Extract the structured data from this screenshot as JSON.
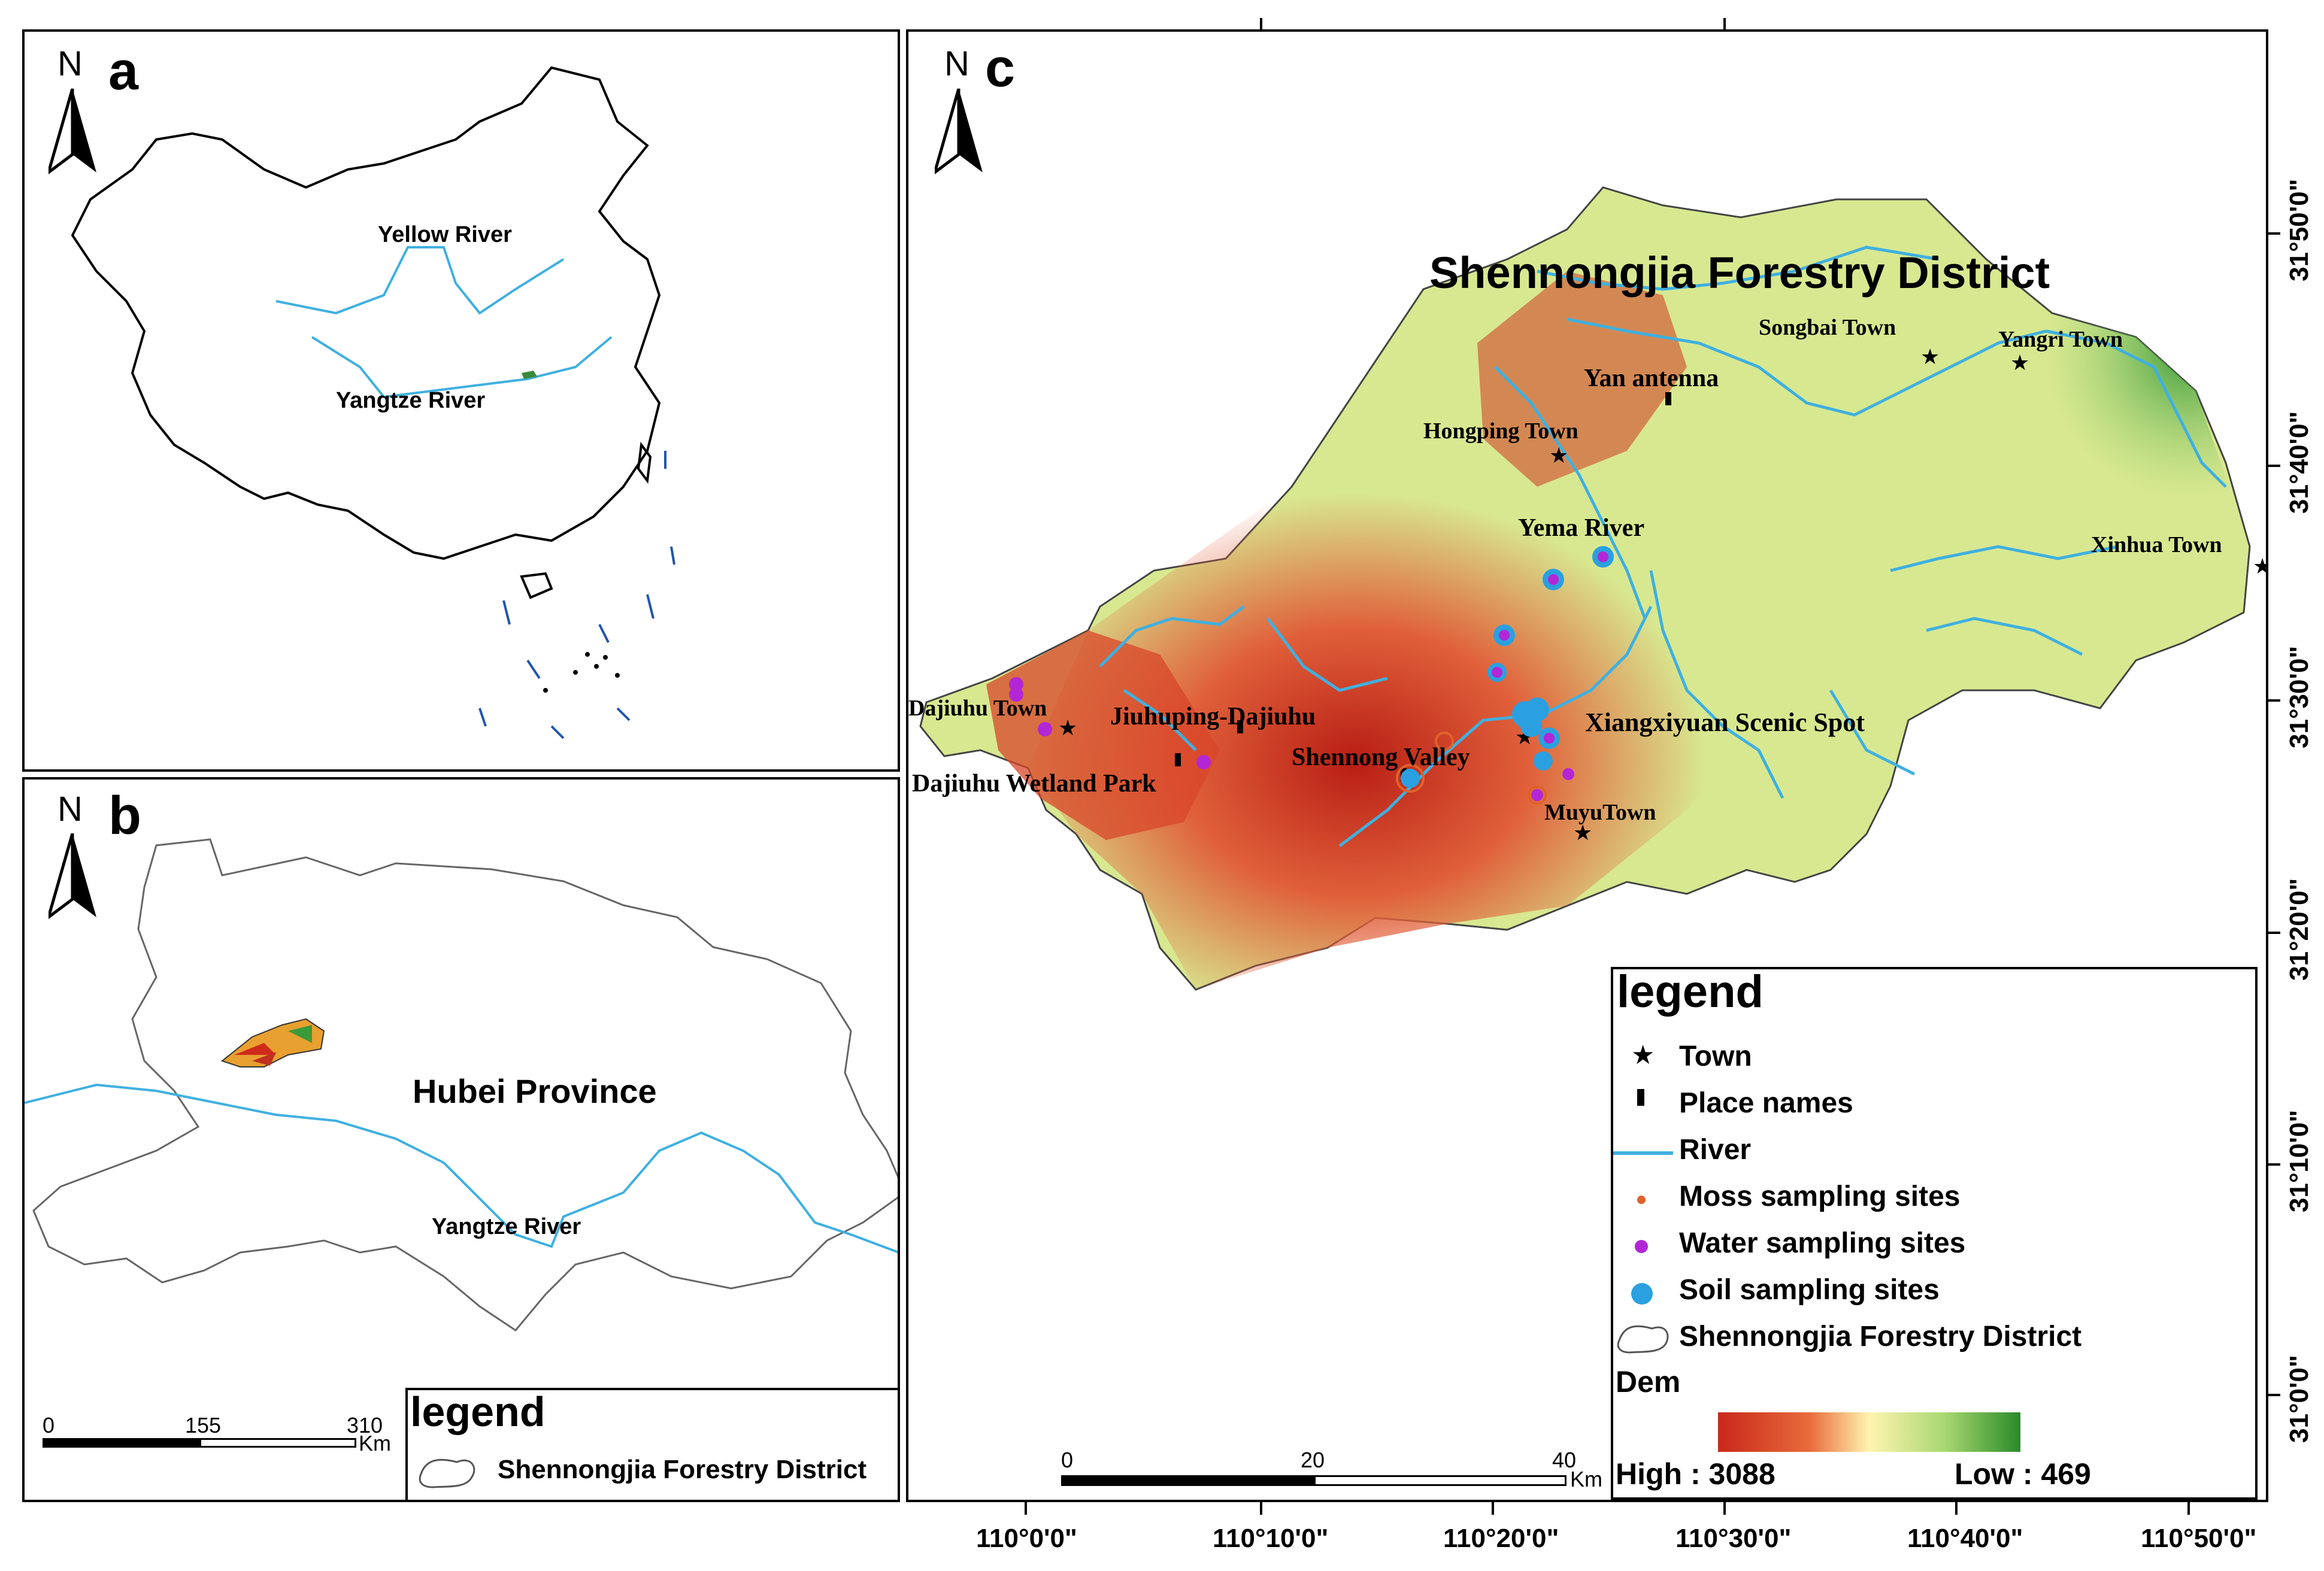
{
  "panels": {
    "a": {
      "letter": "a",
      "north": "N",
      "labels": {
        "yellow_river": "Yellow River",
        "yangtze_river": "Yangtze River"
      }
    },
    "b": {
      "letter": "b",
      "north": "N",
      "labels": {
        "province": "Hubei Province",
        "yangtze_river": "Yangtze River"
      },
      "legend": {
        "title": "legend",
        "item": "Shennongjia Forestry District"
      },
      "scale": {
        "ticks": [
          "0",
          "155",
          "310"
        ],
        "unit": "Km"
      }
    },
    "c": {
      "letter": "c",
      "north": "N",
      "title": "Shennongjia Forestry District",
      "places": {
        "songbai": "Songbai Town",
        "yangri": "Yangri Town",
        "yan_antenna": "Yan antenna",
        "hongping": "Hongping Town",
        "yema": "Yema River",
        "xinhua": "Xinhua Town",
        "dajiuhu_town": "Dajiuhu Town",
        "jiuhuping": "Jiuhuping-Dajiuhu",
        "xiangxiyuan": "Xiangxiyuan Scenic Spot",
        "shennong_valley": "Shennong Valley",
        "dajiuhu_wetland": "Dajiuhu Wetland Park",
        "muyu": "MuyuTown"
      },
      "lat_labels": [
        "31°50'0\"",
        "31°40'0\"",
        "31°30'0\"",
        "31°20'0\"",
        "31°10'0\"",
        "31°0'0\""
      ],
      "lon_labels": [
        "110°0'0\"",
        "110°10'0\"",
        "110°20'0\"",
        "110°30'0\"",
        "110°40'0\"",
        "110°50'0\""
      ],
      "scale": {
        "ticks": [
          "0",
          "20",
          "40"
        ],
        "unit": "Km"
      },
      "legend": {
        "title": "legend",
        "items": [
          "Town",
          "Place names",
          "River",
          "Moss sampling sites",
          "Water sampling sites",
          "Soil sampling sites",
          "Shennongjia Forestry District"
        ],
        "dem_title": "Dem",
        "high": "High : 3088",
        "low": "Low : 469"
      }
    }
  },
  "colors": {
    "river": "#3fb0e0",
    "moss": "#e0622a",
    "water": "#b326d6",
    "soil": "#2aa0e0",
    "dem_high": "#c82a1a",
    "dem_mid": "#fff6b0",
    "dem_low": "#2a8a2a"
  }
}
